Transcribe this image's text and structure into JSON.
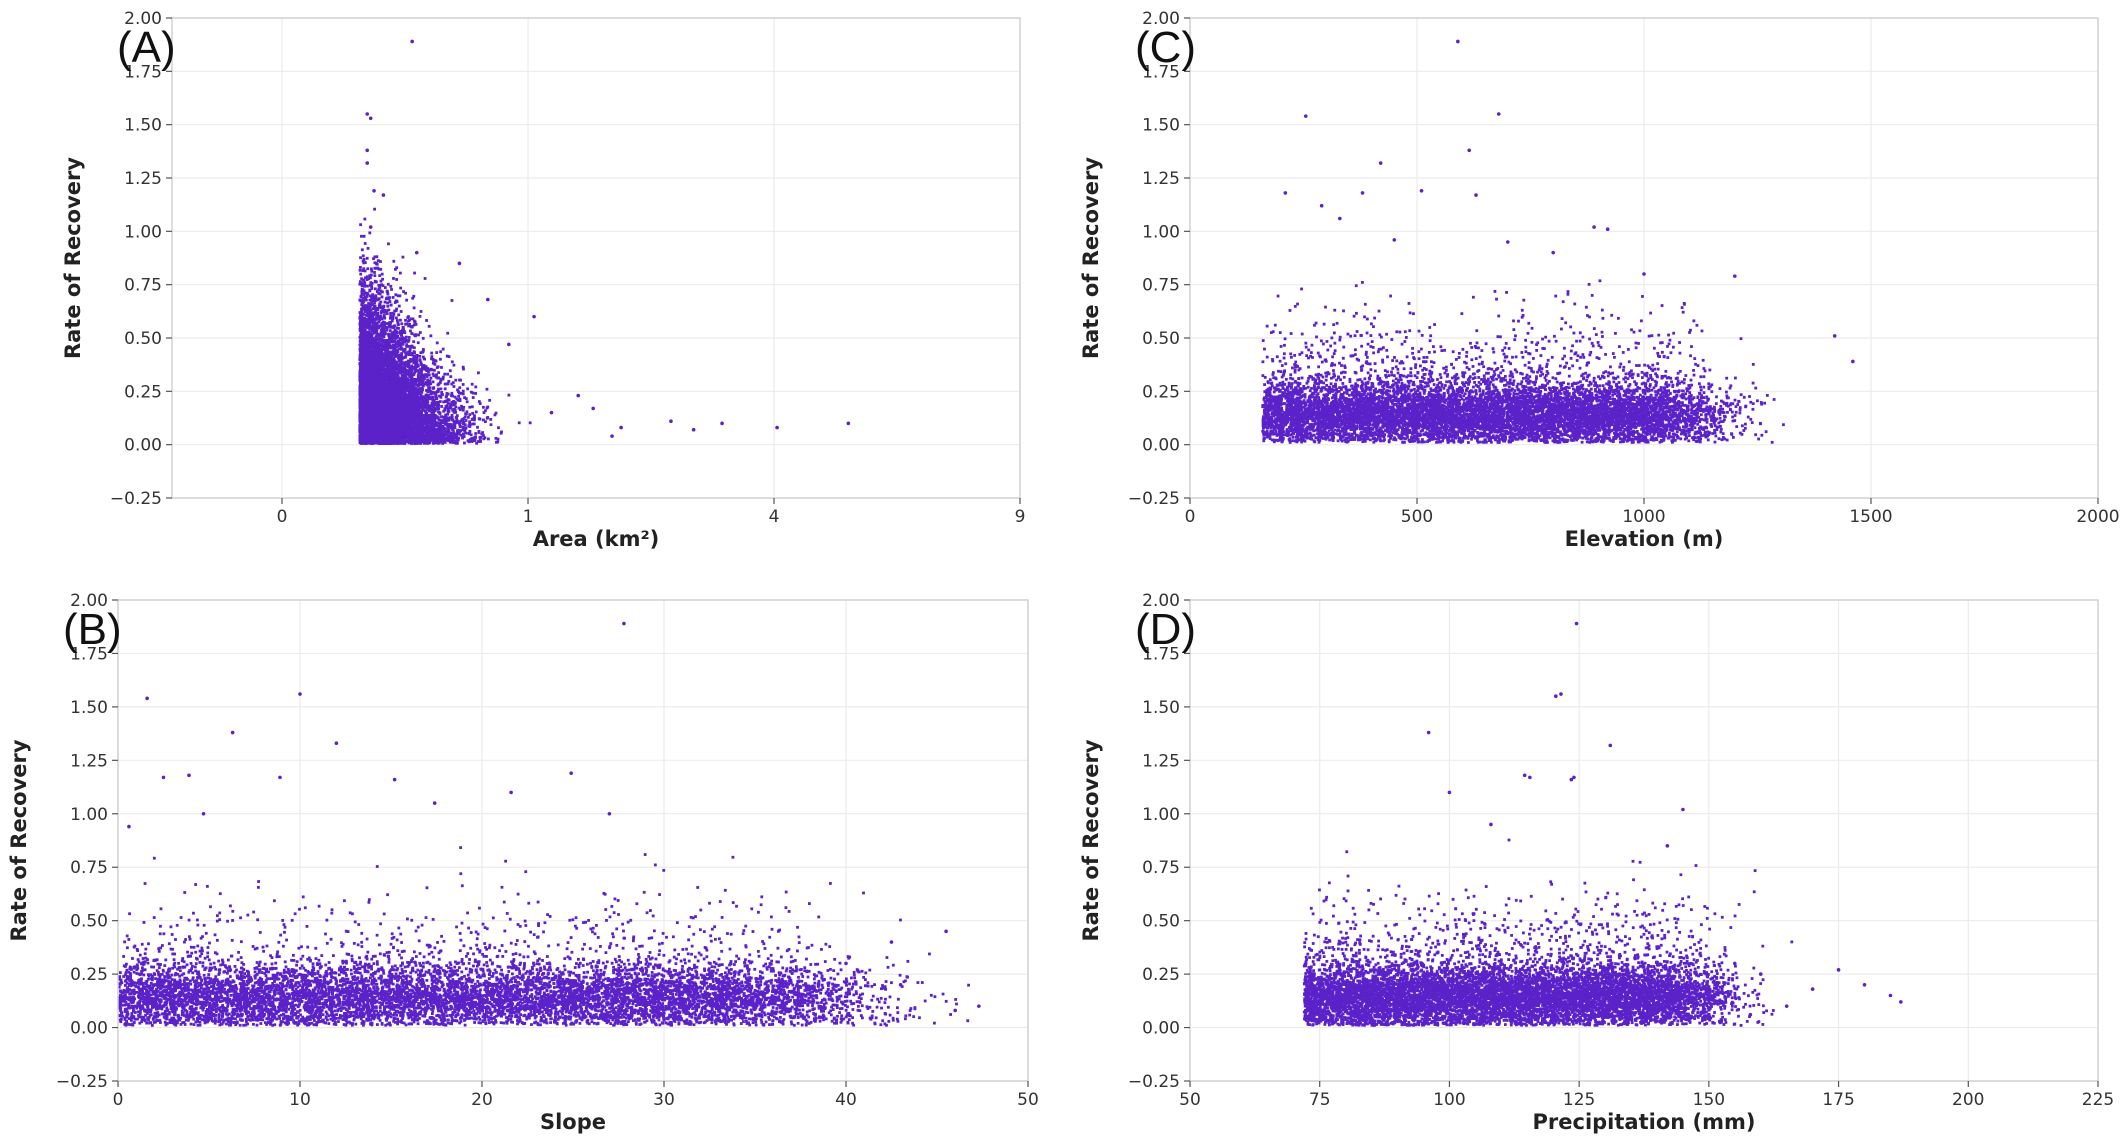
{
  "figure": {
    "point_color": "#5a22c8",
    "panels_order": [
      "A",
      "C",
      "B",
      "D"
    ]
  },
  "chart_data": [
    {
      "id": "A",
      "panel_label": "(A)",
      "type": "scatter",
      "xlabel": "Area (km²)",
      "ylabel": "Rate of Recovery",
      "x_scale": "sqrt",
      "xlim": [
        -0.2,
        9
      ],
      "ylim": [
        -0.25,
        2.0
      ],
      "xticks": [
        0,
        1,
        4,
        9
      ],
      "xtick_labels": [
        "0",
        "1",
        "4",
        "9"
      ],
      "yticks": [
        -0.25,
        0.0,
        0.25,
        0.5,
        0.75,
        1.0,
        1.25,
        1.5,
        1.75,
        2.0
      ],
      "ytick_labels": [
        "−0.25",
        "0.00",
        "0.25",
        "0.50",
        "0.75",
        "1.00",
        "1.25",
        "1.50",
        "1.75",
        "2.00"
      ],
      "grid": true,
      "dense_region": {
        "x_range": [
          0.1,
          0.9
        ],
        "y_range": [
          0.0,
          0.5
        ]
      },
      "points": [
        [
          0.28,
          1.89
        ],
        [
          0.12,
          1.55
        ],
        [
          0.13,
          1.53
        ],
        [
          0.12,
          1.38
        ],
        [
          0.12,
          1.32
        ],
        [
          0.14,
          1.19
        ],
        [
          0.17,
          1.17
        ],
        [
          0.13,
          1.02
        ],
        [
          0.3,
          0.9
        ],
        [
          0.52,
          0.85
        ],
        [
          0.7,
          0.68
        ],
        [
          0.85,
          0.47
        ],
        [
          1.05,
          0.6
        ],
        [
          1.45,
          0.23
        ],
        [
          1.6,
          0.17
        ],
        [
          1.9,
          0.08
        ],
        [
          2.5,
          0.11
        ],
        [
          2.8,
          0.07
        ],
        [
          3.2,
          0.1
        ],
        [
          4.05,
          0.08
        ],
        [
          5.3,
          0.1
        ],
        [
          1.8,
          0.04
        ],
        [
          1.2,
          0.15
        ]
      ]
    },
    {
      "id": "C",
      "panel_label": "(C)",
      "type": "scatter",
      "xlabel": "Elevation (m)",
      "ylabel": "Rate of Recovery",
      "xlim": [
        0,
        2000
      ],
      "ylim": [
        -0.25,
        2.0
      ],
      "xticks": [
        0,
        500,
        1000,
        1500,
        2000
      ],
      "xtick_labels": [
        "0",
        "500",
        "1000",
        "1500",
        "2000"
      ],
      "yticks": [
        -0.25,
        0.0,
        0.25,
        0.5,
        0.75,
        1.0,
        1.25,
        1.5,
        1.75,
        2.0
      ],
      "ytick_labels": [
        "−0.25",
        "0.00",
        "0.25",
        "0.50",
        "0.75",
        "1.00",
        "1.25",
        "1.50",
        "1.75",
        "2.00"
      ],
      "grid": true,
      "dense_region": {
        "x_range": [
          160,
          1000
        ],
        "y_range": [
          0.02,
          0.4
        ]
      },
      "points": [
        [
          590,
          1.89
        ],
        [
          255,
          1.54
        ],
        [
          680,
          1.55
        ],
        [
          615,
          1.38
        ],
        [
          420,
          1.32
        ],
        [
          290,
          1.12
        ],
        [
          330,
          1.06
        ],
        [
          630,
          1.17
        ],
        [
          510,
          1.19
        ],
        [
          380,
          1.18
        ],
        [
          210,
          1.18
        ],
        [
          890,
          1.02
        ],
        [
          920,
          1.01
        ],
        [
          1200,
          0.79
        ],
        [
          1000,
          0.8
        ],
        [
          700,
          0.95
        ],
        [
          800,
          0.9
        ],
        [
          450,
          0.96
        ],
        [
          1420,
          0.51
        ],
        [
          1460,
          0.39
        ]
      ]
    },
    {
      "id": "B",
      "panel_label": "(B)",
      "type": "scatter",
      "xlabel": "Slope",
      "ylabel": "Rate of Recovery",
      "xlim": [
        0,
        50
      ],
      "ylim": [
        -0.25,
        2.0
      ],
      "xticks": [
        0,
        10,
        20,
        30,
        40,
        50
      ],
      "xtick_labels": [
        "0",
        "10",
        "20",
        "30",
        "40",
        "50"
      ],
      "yticks": [
        -0.25,
        0.0,
        0.25,
        0.5,
        0.75,
        1.0,
        1.25,
        1.5,
        1.75,
        2.0
      ],
      "ytick_labels": [
        "−0.25",
        "0.00",
        "0.25",
        "0.50",
        "0.75",
        "1.00",
        "1.25",
        "1.50",
        "1.75",
        "2.00"
      ],
      "grid": true,
      "dense_region": {
        "x_range": [
          0,
          34
        ],
        "y_range": [
          0.02,
          0.35
        ]
      },
      "points": [
        [
          27.8,
          1.89
        ],
        [
          1.6,
          1.54
        ],
        [
          10.0,
          1.56
        ],
        [
          6.3,
          1.38
        ],
        [
          12.0,
          1.33
        ],
        [
          2.5,
          1.17
        ],
        [
          3.9,
          1.18
        ],
        [
          8.9,
          1.17
        ],
        [
          15.2,
          1.16
        ],
        [
          21.6,
          1.1
        ],
        [
          24.9,
          1.19
        ],
        [
          27.0,
          1.0
        ],
        [
          17.4,
          1.05
        ],
        [
          0.6,
          0.94
        ],
        [
          4.7,
          1.0
        ],
        [
          45.5,
          0.45
        ],
        [
          42.5,
          0.4
        ],
        [
          47.3,
          0.1
        ],
        [
          46.0,
          0.08
        ],
        [
          43.0,
          0.2
        ],
        [
          40.0,
          0.3
        ]
      ]
    },
    {
      "id": "D",
      "panel_label": "(D)",
      "type": "scatter",
      "xlabel": "Precipitation (mm)",
      "ylabel": "Rate of Recovery",
      "xlim": [
        50,
        225
      ],
      "ylim": [
        -0.25,
        2.0
      ],
      "xticks": [
        50,
        75,
        100,
        125,
        150,
        175,
        200,
        225
      ],
      "xtick_labels": [
        "50",
        "75",
        "100",
        "125",
        "150",
        "175",
        "200",
        "225"
      ],
      "yticks": [
        -0.25,
        0.0,
        0.25,
        0.5,
        0.75,
        1.0,
        1.25,
        1.5,
        1.75,
        2.0
      ],
      "ytick_labels": [
        "−0.25",
        "0.00",
        "0.25",
        "0.50",
        "0.75",
        "1.00",
        "1.25",
        "1.50",
        "1.75",
        "2.00"
      ],
      "grid": true,
      "dense_region": {
        "x_range": [
          72,
          140
        ],
        "y_range": [
          0.02,
          0.4
        ]
      },
      "points": [
        [
          124.5,
          1.89
        ],
        [
          120.5,
          1.55
        ],
        [
          121.5,
          1.56
        ],
        [
          96.0,
          1.38
        ],
        [
          131.0,
          1.32
        ],
        [
          114.5,
          1.18
        ],
        [
          115.5,
          1.17
        ],
        [
          124.0,
          1.17
        ],
        [
          123.5,
          1.16
        ],
        [
          145.0,
          1.02
        ],
        [
          100.0,
          1.1
        ],
        [
          108.0,
          0.95
        ],
        [
          142.0,
          0.85
        ],
        [
          175.0,
          0.27
        ],
        [
          185.0,
          0.15
        ],
        [
          187.0,
          0.12
        ],
        [
          180.0,
          0.2
        ],
        [
          160.0,
          0.25
        ],
        [
          170.0,
          0.18
        ],
        [
          165.0,
          0.1
        ],
        [
          155.0,
          0.3
        ],
        [
          158.0,
          0.06
        ]
      ]
    }
  ]
}
